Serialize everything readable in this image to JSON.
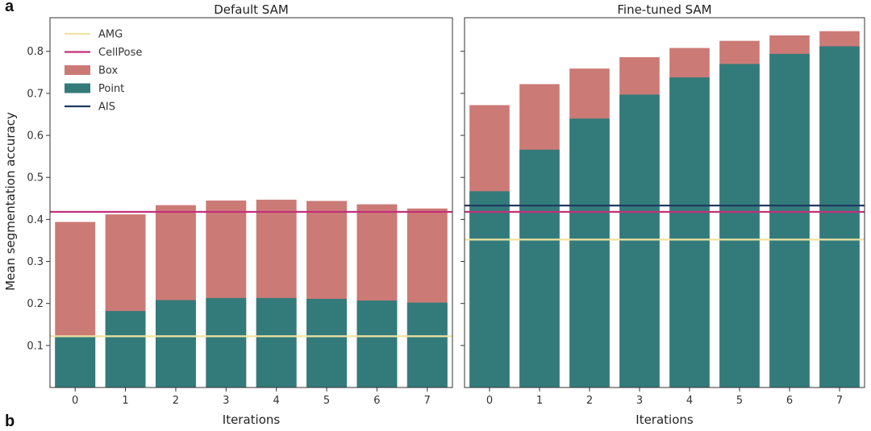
{
  "panel_labels": {
    "top": "a",
    "bottom": "b"
  },
  "legend": [
    {
      "label": "AMG",
      "kind": "line",
      "color": "#efe3a2"
    },
    {
      "label": "CellPose",
      "kind": "line",
      "color": "#c2307a"
    },
    {
      "label": "Box",
      "kind": "patch",
      "color": "#cc7a76"
    },
    {
      "label": "Point",
      "kind": "patch",
      "color": "#337b7b"
    },
    {
      "label": "AIS",
      "kind": "line",
      "color": "#1f3a60"
    }
  ],
  "chart_data": [
    {
      "type": "bar",
      "title": "Default SAM",
      "xlabel": "Iterations",
      "ylabel": "Mean segmentation accuracy",
      "categories": [
        "0",
        "1",
        "2",
        "3",
        "4",
        "5",
        "6",
        "7"
      ],
      "ylim": [
        0.0,
        0.88
      ],
      "yticks": [
        "0.1",
        "0.2",
        "0.3",
        "0.4",
        "0.5",
        "0.6",
        "0.7",
        "0.8"
      ],
      "series": [
        {
          "name": "Box",
          "color": "#cc7a76",
          "values": [
            0.394,
            0.412,
            0.434,
            0.445,
            0.447,
            0.444,
            0.436,
            0.426
          ]
        },
        {
          "name": "Point",
          "color": "#337b7b",
          "values": [
            0.12,
            0.182,
            0.208,
            0.213,
            0.213,
            0.211,
            0.207,
            0.202
          ]
        }
      ],
      "reference_lines": [
        {
          "name": "CellPose",
          "color": "#c2307a",
          "value": 0.418
        },
        {
          "name": "AMG",
          "color": "#efe3a2",
          "value": 0.122
        }
      ]
    },
    {
      "type": "bar",
      "title": "Fine-tuned SAM",
      "xlabel": "Iterations",
      "ylabel": "",
      "categories": [
        "0",
        "1",
        "2",
        "3",
        "4",
        "5",
        "6",
        "7"
      ],
      "ylim": [
        0.0,
        0.88
      ],
      "yticks": [
        "0.1",
        "0.2",
        "0.3",
        "0.4",
        "0.5",
        "0.6",
        "0.7",
        "0.8"
      ],
      "series": [
        {
          "name": "Box",
          "color": "#cc7a76",
          "values": [
            0.672,
            0.722,
            0.759,
            0.786,
            0.808,
            0.825,
            0.838,
            0.848
          ]
        },
        {
          "name": "Point",
          "color": "#337b7b",
          "values": [
            0.467,
            0.566,
            0.64,
            0.697,
            0.738,
            0.77,
            0.794,
            0.812
          ]
        }
      ],
      "reference_lines": [
        {
          "name": "AIS",
          "color": "#1f3a60",
          "value": 0.433
        },
        {
          "name": "CellPose",
          "color": "#c2307a",
          "value": 0.418
        },
        {
          "name": "AMG",
          "color": "#efe3a2",
          "value": 0.352
        }
      ]
    }
  ]
}
